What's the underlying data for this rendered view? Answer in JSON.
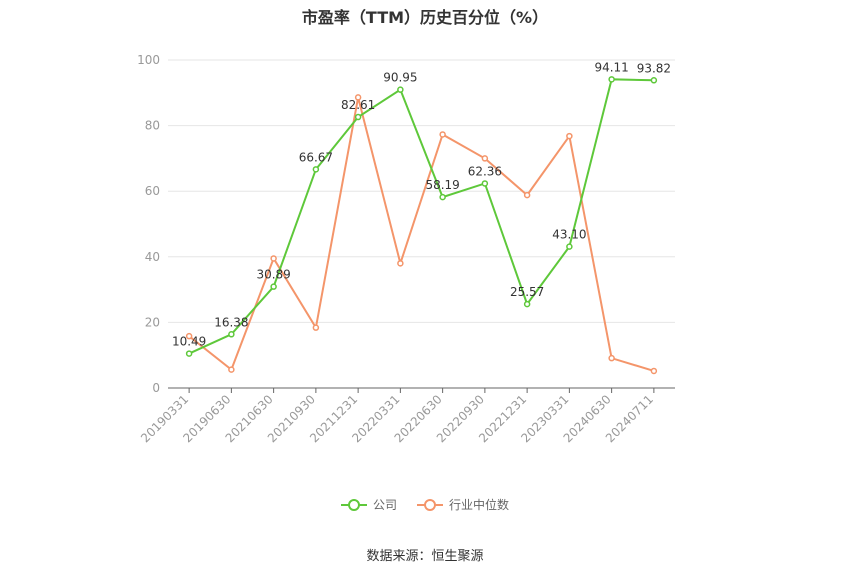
{
  "chart_data": {
    "type": "line",
    "title": "市盈率（TTM）历史百分位（%）",
    "categories": [
      "20190331",
      "20190630",
      "20210630",
      "20210930",
      "20211231",
      "20220331",
      "20220630",
      "20220930",
      "20221231",
      "20230331",
      "20240630",
      "20240711"
    ],
    "ylim": [
      0,
      100
    ],
    "yticks": [
      0,
      20,
      40,
      60,
      80,
      100
    ],
    "grid": true,
    "legend_position": "bottom",
    "series": [
      {
        "name": "公司",
        "color": "#5ec83a",
        "values": [
          10.49,
          16.38,
          30.89,
          66.67,
          82.61,
          90.95,
          58.19,
          62.36,
          25.57,
          43.1,
          94.11,
          93.82
        ],
        "labels": [
          "10.49",
          "16.38",
          "30.89",
          "66.67",
          "82.61",
          "90.95",
          "58.19",
          "62.36",
          "25.57",
          "43.10",
          "94.11",
          "93.82"
        ]
      },
      {
        "name": "行业中位数",
        "color": "#f4956a",
        "values": [
          15.8,
          5.6,
          39.5,
          18.4,
          88.6,
          38.0,
          77.3,
          70.0,
          58.8,
          76.8,
          9.1,
          5.2
        ]
      }
    ]
  },
  "source": "数据来源：恒生聚源"
}
